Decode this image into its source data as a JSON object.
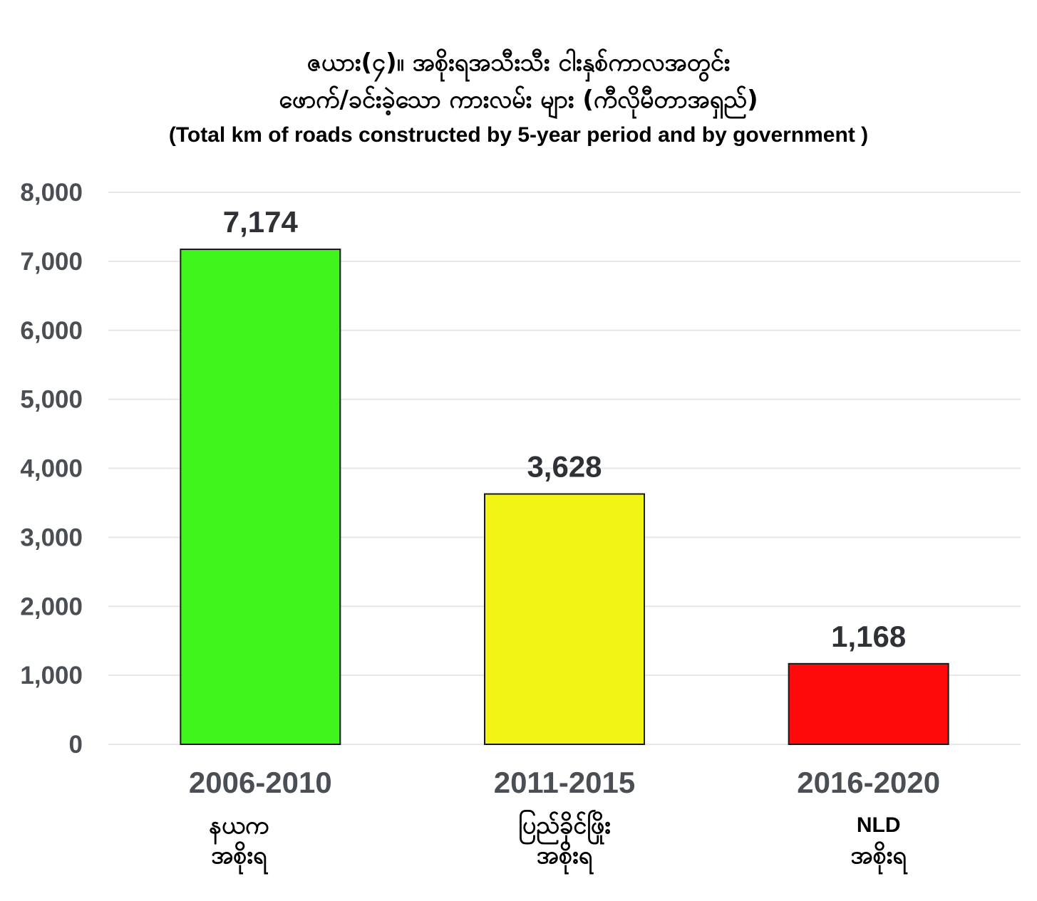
{
  "title": {
    "line1": "ဇယား(၄)။ အစိုးရအသီးသီး ငါးနှစ်ကာလအတွင်း",
    "line2": "ဖောက်/ခင်းခဲ့သော ကားလမ်း များ (ကီလိုမီတာအရှည်)",
    "line3": "(Total km of roads constructed by 5-year period and by government )"
  },
  "chart_data": {
    "type": "bar",
    "categories": [
      "2006-2010",
      "2011-2015",
      "2016-2020"
    ],
    "values": [
      7174,
      3628,
      1168
    ],
    "value_labels": [
      "7,174",
      "3,628",
      "1,168"
    ],
    "colors": [
      "#40f51a",
      "#f2f514",
      "#ff0a0a"
    ],
    "government_labels": [
      [
        "နယက",
        "အစိုးရ"
      ],
      [
        "ပြည်ခိုင်ဖြိုး",
        "အစိုးရ"
      ],
      [
        "NLD",
        "အစိုးရ"
      ]
    ],
    "yticks": [
      0,
      1000,
      2000,
      3000,
      4000,
      5000,
      6000,
      7000,
      8000
    ],
    "ytick_labels": [
      "0",
      "1,000",
      "2,000",
      "3,000",
      "4,000",
      "5,000",
      "6,000",
      "7,000",
      "8,000"
    ],
    "ylim": [
      0,
      8000
    ],
    "grid": true,
    "legend": "none",
    "xlabel": "",
    "ylabel": ""
  }
}
